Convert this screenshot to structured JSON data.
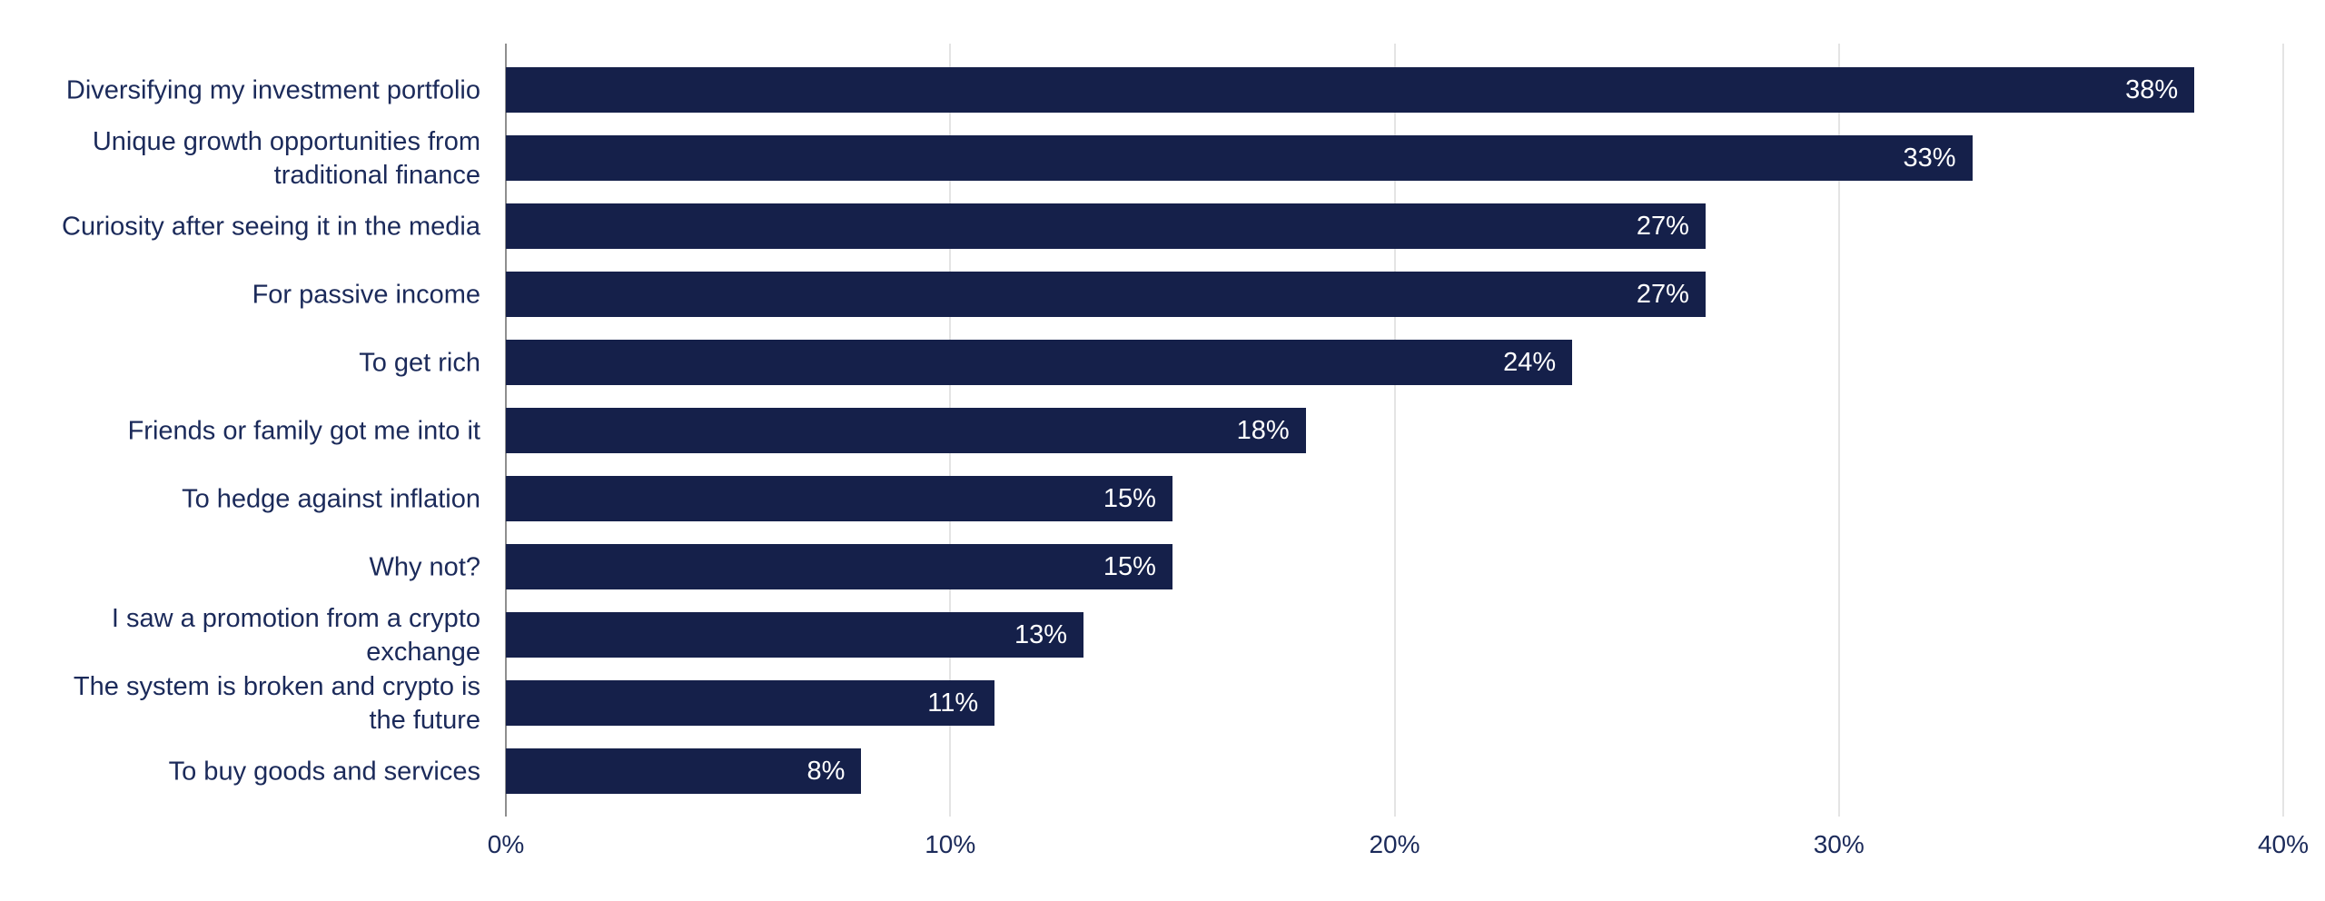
{
  "chart_data": {
    "type": "bar",
    "orientation": "horizontal",
    "title": "",
    "xlabel": "",
    "ylabel": "",
    "categories": [
      "Diversifying my investment portfolio",
      "Unique growth opportunities from\ntraditional finance",
      "Curiosity after seeing it in the media",
      "For passive income",
      "To get rich",
      "Friends or family got me into it",
      "To hedge against inflation",
      "Why not?",
      "I saw a promotion from a crypto\nexchange",
      "The system is broken and crypto is\nthe future",
      "To buy goods and services"
    ],
    "values": [
      38,
      33,
      27,
      27,
      24,
      18,
      15,
      15,
      13,
      11,
      8
    ],
    "value_labels": [
      "38%",
      "33%",
      "27%",
      "27%",
      "24%",
      "18%",
      "15%",
      "15%",
      "13%",
      "11%",
      "8%"
    ],
    "xlim": [
      0,
      40
    ],
    "x_ticks": [
      {
        "value": 0,
        "label": "0%"
      },
      {
        "value": 10,
        "label": "10%"
      },
      {
        "value": 20,
        "label": "20%"
      },
      {
        "value": 30,
        "label": "30%"
      },
      {
        "value": 40,
        "label": "40%"
      }
    ],
    "grid": "vertical gridlines only",
    "legend": "none",
    "colors": {
      "bar": "#15204A",
      "value_label": "#FFFFFF",
      "category_label": "#1B2A5A",
      "tick_label": "#1B2A5A",
      "gridline": "#E4E4E4",
      "axis_line": "#8F8F8F",
      "background": "#FFFFFF"
    }
  }
}
